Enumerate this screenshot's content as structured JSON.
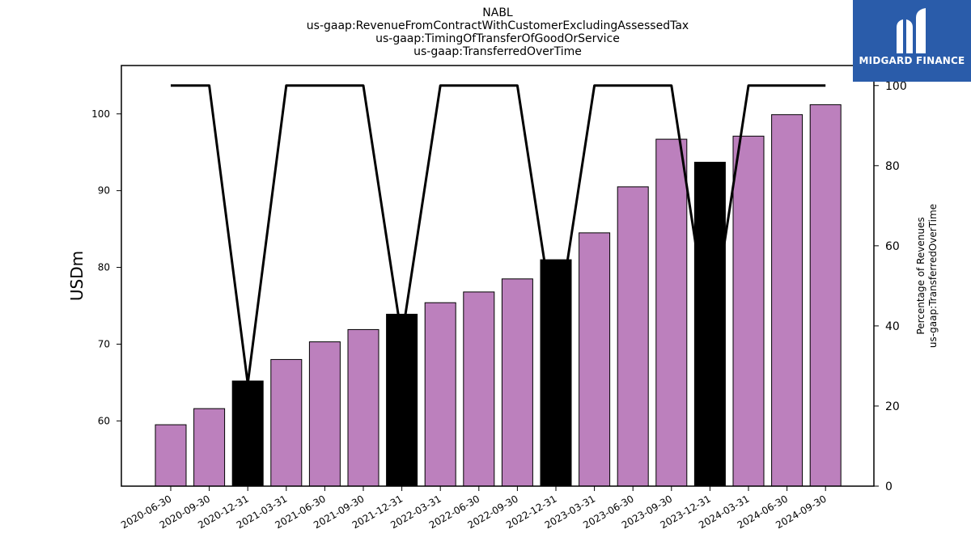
{
  "chart_data": {
    "type": "bar",
    "title_lines": [
      "NABL",
      "us-gaap:RevenueFromContractWithCustomerExcludingAssessedTax",
      "us-gaap:TimingOfTransferOfGoodOrService",
      "us-gaap:TransferredOverTime"
    ],
    "ylabel": "USDm",
    "ylabel_right": [
      "Percentage of Revenues",
      "us-gaap:TransferredOverTime"
    ],
    "categories": [
      "2020-06-30",
      "2020-09-30",
      "2020-12-31",
      "2021-03-31",
      "2021-06-30",
      "2021-09-30",
      "2021-12-31",
      "2022-03-31",
      "2022-06-30",
      "2022-09-30",
      "2022-12-31",
      "2023-03-31",
      "2023-06-30",
      "2023-09-30",
      "2023-12-31",
      "2024-03-31",
      "2024-06-30",
      "2024-09-30"
    ],
    "bar_values": [
      59.5,
      61.6,
      65.2,
      68.0,
      70.3,
      71.9,
      73.9,
      75.4,
      76.8,
      78.5,
      81.0,
      84.5,
      90.5,
      96.7,
      93.7,
      97.1,
      99.9,
      101.2
    ],
    "highlighted": [
      false,
      false,
      true,
      false,
      false,
      false,
      true,
      false,
      false,
      false,
      true,
      false,
      false,
      false,
      true,
      false,
      false,
      false
    ],
    "line_values": [
      100,
      100,
      25.6,
      100,
      100,
      100,
      37.0,
      100,
      100,
      100,
      37.5,
      100,
      100,
      100,
      37.0,
      100,
      100,
      100
    ],
    "ylim_left": [
      51.5,
      106.3
    ],
    "ylim_right": [
      0,
      105
    ],
    "yticks_left": [
      60,
      70,
      80,
      90,
      100
    ],
    "yticks_right": [
      0,
      20,
      40,
      60,
      80,
      100
    ],
    "colors": {
      "bar": "#bc80bd",
      "bar_highlight": "#000000",
      "line": "#000000",
      "logo_bg": "#2a5caa"
    },
    "grid": false,
    "legend": "none"
  },
  "logo": {
    "text": "MIDGARD FINANCE",
    "icon": "midgard-logo-icon"
  }
}
